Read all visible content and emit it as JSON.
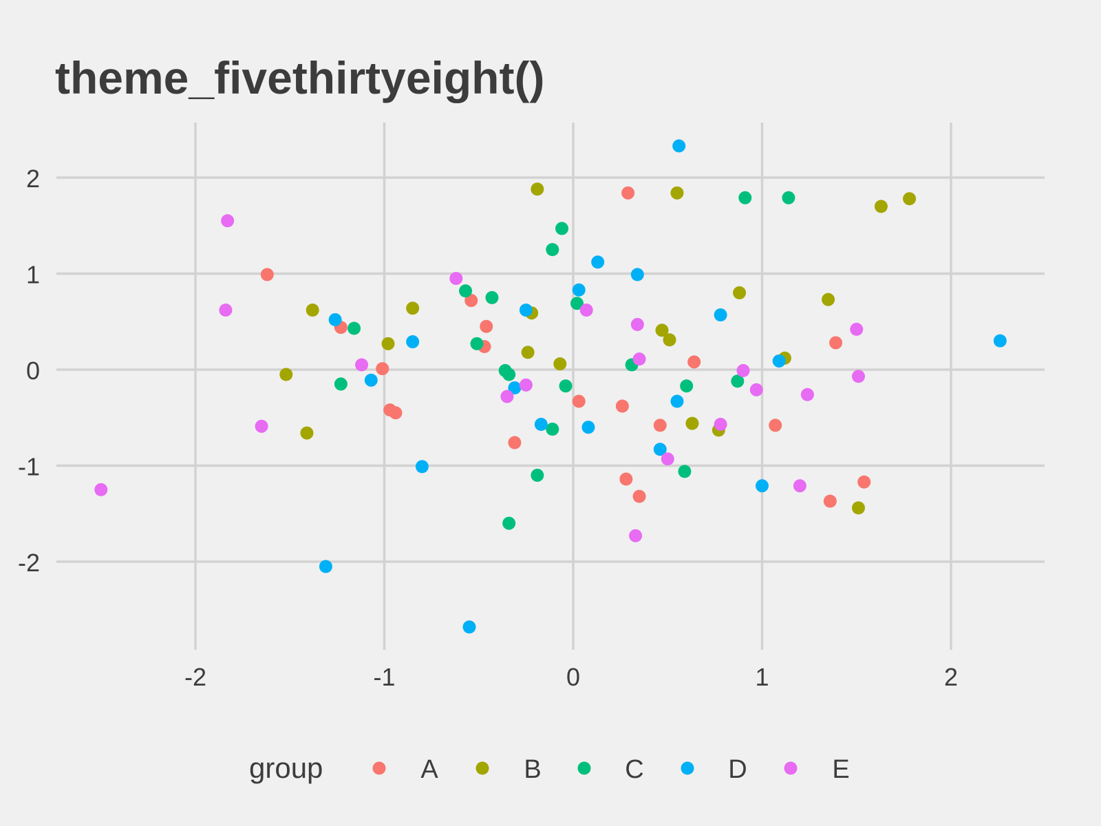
{
  "chart_data": {
    "type": "scatter",
    "title": "theme_fivethirtyeight()",
    "xlabel": "",
    "ylabel": "",
    "xlim": [
      -2.5,
      2.5
    ],
    "ylim": [
      -2.9,
      2.55
    ],
    "x_ticks": [
      -2,
      -1,
      0,
      1,
      2
    ],
    "y_ticks": [
      -2,
      -1,
      0,
      1,
      2
    ],
    "x_tick_labels": [
      "-2",
      "-1",
      "0",
      "1",
      "2"
    ],
    "y_tick_labels": [
      "-2",
      "-1",
      "0",
      "1",
      "2"
    ],
    "grid": true,
    "legend": {
      "title": "group",
      "position": "bottom"
    },
    "series": [
      {
        "name": "A",
        "color": "#F8766D",
        "points": [
          [
            -1.62,
            0.99
          ],
          [
            -1.23,
            0.44
          ],
          [
            -1.01,
            0.01
          ],
          [
            -0.97,
            -0.42
          ],
          [
            -0.94,
            -0.45
          ],
          [
            -0.54,
            0.72
          ],
          [
            -0.46,
            0.45
          ],
          [
            -0.47,
            0.24
          ],
          [
            -0.31,
            -0.76
          ],
          [
            0.03,
            -0.33
          ],
          [
            0.29,
            1.84
          ],
          [
            0.26,
            -0.38
          ],
          [
            0.28,
            -1.14
          ],
          [
            0.35,
            -1.32
          ],
          [
            0.46,
            -0.58
          ],
          [
            0.64,
            0.08
          ],
          [
            1.07,
            -0.58
          ],
          [
            1.39,
            0.28
          ],
          [
            1.36,
            -1.37
          ],
          [
            1.54,
            -1.17
          ]
        ]
      },
      {
        "name": "B",
        "color": "#A3A500",
        "points": [
          [
            -1.52,
            -0.05
          ],
          [
            -1.38,
            0.62
          ],
          [
            -1.41,
            -0.66
          ],
          [
            -0.98,
            0.27
          ],
          [
            -0.85,
            0.64
          ],
          [
            -0.22,
            0.59
          ],
          [
            -0.19,
            1.88
          ],
          [
            -0.24,
            0.18
          ],
          [
            -0.07,
            0.06
          ],
          [
            0.55,
            1.84
          ],
          [
            0.47,
            0.41
          ],
          [
            0.51,
            0.31
          ],
          [
            0.63,
            -0.56
          ],
          [
            0.77,
            -0.63
          ],
          [
            0.88,
            0.8
          ],
          [
            1.12,
            0.12
          ],
          [
            1.35,
            0.73
          ],
          [
            1.63,
            1.7
          ],
          [
            1.78,
            1.78
          ],
          [
            1.51,
            -1.44
          ]
        ]
      },
      {
        "name": "C",
        "color": "#00BF7D",
        "points": [
          [
            -1.16,
            0.43
          ],
          [
            -1.23,
            -0.15
          ],
          [
            -0.57,
            0.82
          ],
          [
            -0.51,
            0.27
          ],
          [
            -0.43,
            0.75
          ],
          [
            -0.36,
            -0.01
          ],
          [
            -0.34,
            -0.05
          ],
          [
            -0.34,
            -1.6
          ],
          [
            -0.11,
            1.25
          ],
          [
            -0.11,
            -0.62
          ],
          [
            -0.06,
            1.47
          ],
          [
            -0.04,
            -0.17
          ],
          [
            -0.19,
            -1.1
          ],
          [
            0.02,
            0.69
          ],
          [
            0.31,
            0.05
          ],
          [
            0.6,
            -0.17
          ],
          [
            0.59,
            -1.06
          ],
          [
            0.87,
            -0.12
          ],
          [
            0.91,
            1.79
          ],
          [
            1.14,
            1.79
          ]
        ]
      },
      {
        "name": "D",
        "color": "#00B0F6",
        "points": [
          [
            -1.26,
            0.52
          ],
          [
            -1.31,
            -2.05
          ],
          [
            -1.07,
            -0.11
          ],
          [
            -0.85,
            0.29
          ],
          [
            -0.8,
            -1.01
          ],
          [
            -0.55,
            -2.68
          ],
          [
            -0.25,
            0.62
          ],
          [
            -0.31,
            -0.19
          ],
          [
            -0.17,
            -0.57
          ],
          [
            0.03,
            0.83
          ],
          [
            0.08,
            -0.6
          ],
          [
            0.13,
            1.12
          ],
          [
            0.34,
            0.99
          ],
          [
            0.46,
            -0.83
          ],
          [
            0.55,
            -0.33
          ],
          [
            0.56,
            2.33
          ],
          [
            0.78,
            0.57
          ],
          [
            1.09,
            0.09
          ],
          [
            1.0,
            -1.21
          ],
          [
            2.26,
            0.3
          ]
        ]
      },
      {
        "name": "E",
        "color": "#E76BF3",
        "points": [
          [
            -2.5,
            -1.25
          ],
          [
            -1.84,
            0.62
          ],
          [
            -1.83,
            1.55
          ],
          [
            -1.65,
            -0.59
          ],
          [
            -1.12,
            0.05
          ],
          [
            -0.62,
            0.95
          ],
          [
            -0.35,
            -0.28
          ],
          [
            -0.25,
            -0.16
          ],
          [
            0.07,
            0.62
          ],
          [
            0.34,
            0.47
          ],
          [
            0.35,
            0.11
          ],
          [
            0.33,
            -1.73
          ],
          [
            0.5,
            -0.93
          ],
          [
            0.78,
            -0.57
          ],
          [
            0.9,
            -0.01
          ],
          [
            0.97,
            -0.21
          ],
          [
            1.2,
            -1.21
          ],
          [
            1.24,
            -0.26
          ],
          [
            1.5,
            0.42
          ],
          [
            1.51,
            -0.07
          ]
        ]
      }
    ]
  }
}
